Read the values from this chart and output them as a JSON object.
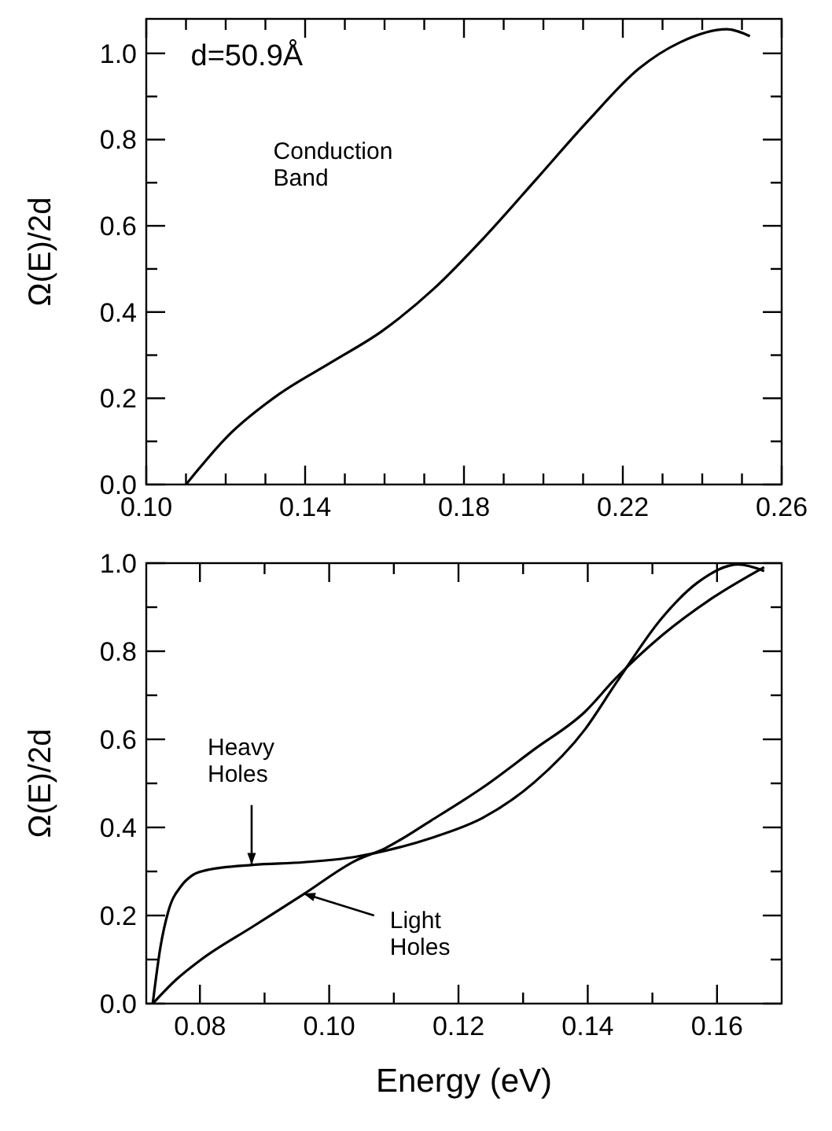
{
  "chart_data": [
    {
      "type": "line",
      "ylabel": "Ω(E)/2d",
      "xlim": [
        0.1,
        0.26
      ],
      "ylim": [
        0,
        1.08
      ],
      "xticks": [
        {
          "value": 0.1,
          "label": "0.10"
        },
        {
          "value": 0.11,
          "label": null
        },
        {
          "value": 0.12,
          "label": null
        },
        {
          "value": 0.13,
          "label": null
        },
        0.14,
        {
          "value": 0.15,
          "label": null
        },
        {
          "value": 0.16,
          "label": null
        },
        {
          "value": 0.17,
          "label": null
        },
        0.18,
        {
          "value": 0.19,
          "label": null
        },
        {
          "value": 0.2,
          "label": null
        },
        {
          "value": 0.21,
          "label": null
        },
        0.22,
        {
          "value": 0.23,
          "label": null
        },
        {
          "value": 0.24,
          "label": null
        },
        {
          "value": 0.25,
          "label": null
        },
        0.26
      ],
      "yticks": [
        {
          "value": 0,
          "label": "0.0"
        },
        {
          "value": 0.1,
          "label": null
        },
        0.2,
        {
          "value": 0.3,
          "label": null
        },
        0.4,
        {
          "value": 0.5,
          "label": null
        },
        0.6,
        {
          "value": 0.7,
          "label": null
        },
        0.8,
        {
          "value": 0.9,
          "label": null
        },
        {
          "value": 1,
          "label": "1.0"
        }
      ],
      "marker": "none",
      "line_style": "solid",
      "series": [
        {
          "color": "#000000",
          "x": [
            0.11,
            0.1206,
            0.1335,
            0.1465,
            0.1594,
            0.1724,
            0.1853,
            0.1983,
            0.2112,
            0.2241,
            0.2345,
            0.2462,
            0.252
          ],
          "values": [
            0,
            0.113,
            0.21,
            0.283,
            0.356,
            0.454,
            0.575,
            0.709,
            0.843,
            0.965,
            1.026,
            1.056,
            1.04
          ]
        }
      ],
      "annotations": [
        "d=50.9Å",
        "Conduction Band"
      ]
    },
    {
      "type": "line",
      "xlabel": "Energy  (eV)",
      "ylabel": "Ω(E)/2d",
      "xlim": [
        0.0717,
        0.17
      ],
      "ylim": [
        0,
        1.0
      ],
      "xticks": [
        0.08,
        {
          "value": 0.09,
          "label": null
        },
        {
          "value": 0.1,
          "label": "0.10"
        },
        {
          "value": 0.11,
          "label": null
        },
        0.12,
        {
          "value": 0.13,
          "label": null
        },
        0.14,
        {
          "value": 0.15,
          "label": null
        },
        0.16
      ],
      "yticks": [
        {
          "value": 0,
          "label": "0.0"
        },
        {
          "value": 0.1,
          "label": null
        },
        0.2,
        {
          "value": 0.3,
          "label": null
        },
        0.4,
        {
          "value": 0.5,
          "label": null
        },
        0.6,
        {
          "value": 0.7,
          "label": null
        },
        0.8,
        {
          "value": 0.9,
          "label": null
        },
        {
          "value": 1,
          "label": "1.0"
        }
      ],
      "marker": "none",
      "line_style": "solid",
      "series": [
        {
          "color": "#000000",
          "x": [
            0.0727,
            0.0739,
            0.0751,
            0.0771,
            0.0787,
            0.081,
            0.0882,
            0.0961,
            0.104,
            0.1087,
            0.1158,
            0.1238,
            0.1317,
            0.1396,
            0.1443,
            0.1515,
            0.157,
            0.1633,
            0.1673
          ],
          "values": [
            0,
            0.129,
            0.209,
            0.267,
            0.29,
            0.303,
            0.315,
            0.321,
            0.333,
            0.347,
            0.376,
            0.422,
            0.502,
            0.623,
            0.726,
            0.876,
            0.956,
            0.997,
            0.982
          ]
        },
        {
          "color": "#000000",
          "x": [
            0.0727,
            0.0763,
            0.0802,
            0.0882,
            0.0961,
            0.104,
            0.1087,
            0.1158,
            0.1238,
            0.1317,
            0.1396,
            0.1443,
            0.1515,
            0.1594,
            0.1673
          ],
          "values": [
            0,
            0.054,
            0.1,
            0.175,
            0.249,
            0.324,
            0.353,
            0.416,
            0.491,
            0.577,
            0.663,
            0.738,
            0.836,
            0.922,
            0.991
          ]
        }
      ],
      "annotations": [
        {
          "text": "Heavy Holes",
          "x": 0.088,
          "y": 0.315
        },
        {
          "text": "Light Holes",
          "x": 0.096,
          "y": 0.25
        }
      ]
    }
  ]
}
